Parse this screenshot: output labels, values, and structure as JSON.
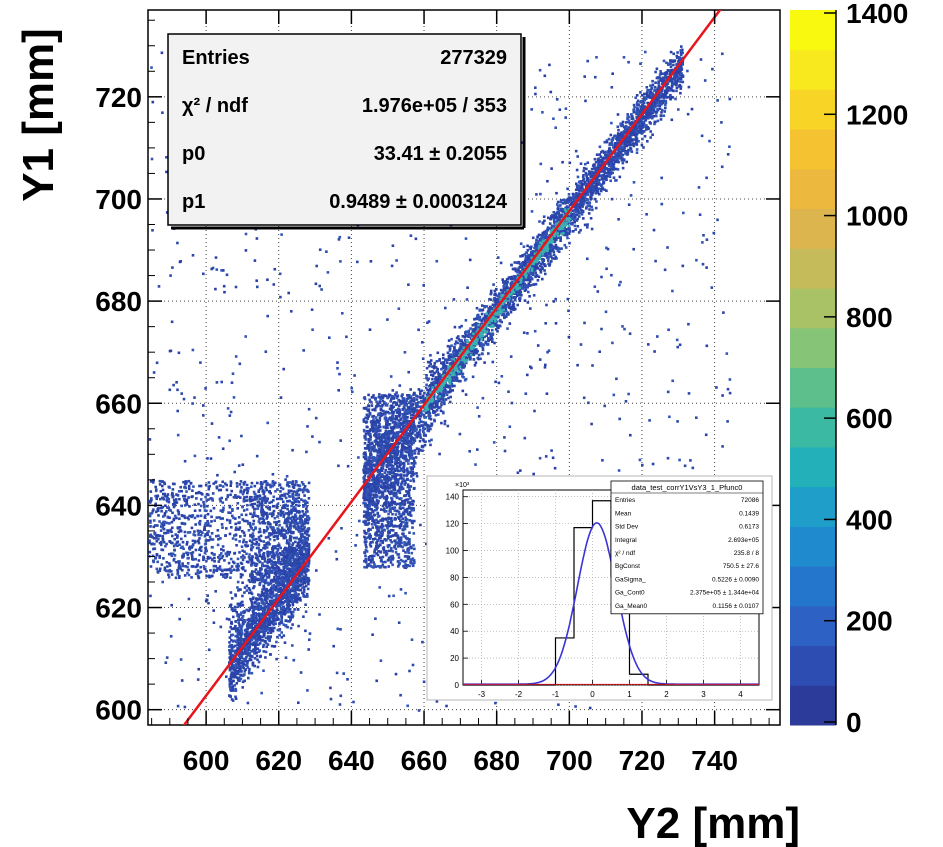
{
  "chart_data": {
    "type": "heatmap",
    "title": "",
    "xlabel": "Y2 [mm]",
    "ylabel": "Y1 [mm]",
    "xlim": [
      584,
      758
    ],
    "ylim": [
      597,
      737
    ],
    "x_ticks": [
      600,
      620,
      640,
      660,
      680,
      700,
      720,
      740
    ],
    "y_ticks": [
      600,
      620,
      640,
      660,
      680,
      700,
      720
    ],
    "grid": true,
    "colorbar": {
      "min": 0,
      "max": 1400,
      "ticks": [
        0,
        200,
        400,
        600,
        800,
        1000,
        1200,
        1400
      ]
    },
    "fit_line": {
      "p0": 33.41,
      "p1": 0.9489,
      "color": "#e8141a"
    },
    "stats_box": {
      "rows": [
        {
          "name": "Entries",
          "value": "277329"
        },
        {
          "name": "χ² / ndf",
          "value": "1.976e+05 / 353"
        },
        {
          "name": "p0",
          "value": "33.41 ± 0.2055"
        },
        {
          "name": "p1",
          "value": "0.9489 ± 0.0003124"
        }
      ]
    },
    "scatter_clusters": [
      {
        "x_range": [
          605,
          628
        ],
        "y_range": [
          602,
          645
        ],
        "note": "lower-left diagonal cluster"
      },
      {
        "x_range": [
          643,
          730
        ],
        "y_range": [
          640,
          725
        ],
        "note": "main diagonal band"
      },
      {
        "x_range": [
          584,
          628
        ],
        "y_range": [
          625,
          645
        ],
        "note": "horizontal spread band"
      }
    ]
  },
  "inset": {
    "exponent_label": "×10³",
    "x_ticks": [
      -3,
      -2,
      -1,
      0,
      1,
      2,
      3,
      4
    ],
    "y_ticks": [
      0,
      20,
      40,
      60,
      80,
      100,
      120,
      140
    ],
    "xlim": [
      -3.5,
      4.5
    ],
    "ylim": [
      0,
      145
    ],
    "histogram": {
      "edges": [
        -1,
        -0.5,
        0,
        0.5,
        1,
        1.5
      ],
      "values": [
        35,
        117,
        137,
        81,
        8
      ]
    },
    "gauss_fit": {
      "const": 750.5,
      "amplitude": 120,
      "mean": 0.1156,
      "sigma": 0.5226,
      "color": "#3a35d8"
    },
    "stats": {
      "title": "data_test_corrY1VsY3_1_Pfunc0",
      "rows": [
        {
          "name": "Entries",
          "value": "72086"
        },
        {
          "name": "Mean",
          "value": "0.1439"
        },
        {
          "name": "Std Dev",
          "value": "0.6173"
        },
        {
          "name": "Integral",
          "value": "2.693e+05"
        },
        {
          "name": "χ² / ndf",
          "value": "235.8 / 8"
        },
        {
          "name": "BgConst",
          "value": "750.5 ± 27.6"
        },
        {
          "name": "GaSigma_",
          "value": "0.5226 ± 0.0090"
        },
        {
          "name": "Ga_Cont0",
          "value": "2.375e+05 ± 1.344e+04"
        },
        {
          "name": "Ga_Mean0",
          "value": "0.1156 ± 0.0107"
        }
      ]
    }
  }
}
